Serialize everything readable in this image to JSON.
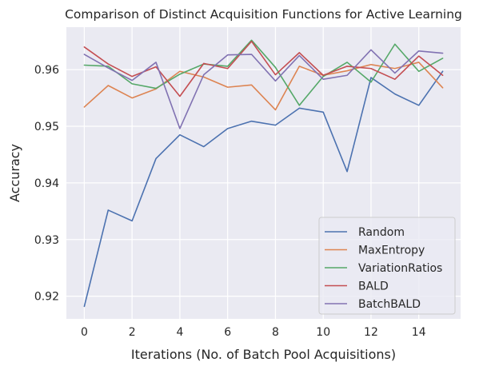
{
  "chart_data": {
    "type": "line",
    "title": "Comparison of Distinct Acquisition Functions for Active Learning",
    "xlabel": "Iterations (No. of Batch Pool Acquisitions)",
    "ylabel": "Accuracy",
    "xlim": [
      -0.75,
      15.75
    ],
    "ylim": [
      0.916,
      0.9675
    ],
    "xticks": [
      0,
      2,
      4,
      6,
      8,
      10,
      12,
      14
    ],
    "xtick_labels": [
      "0",
      "2",
      "4",
      "6",
      "8",
      "10",
      "12",
      "14"
    ],
    "yticks": [
      0.92,
      0.93,
      0.94,
      0.95,
      0.96
    ],
    "ytick_labels": [
      "0.92",
      "0.93",
      "0.94",
      "0.95",
      "0.96"
    ],
    "grid": true,
    "legend_position": "lower-right",
    "x": [
      0,
      1,
      2,
      3,
      4,
      5,
      6,
      7,
      8,
      9,
      10,
      11,
      12,
      13,
      14,
      15
    ],
    "series": [
      {
        "name": "Random",
        "color": "#4c72b0",
        "values": [
          0.9182,
          0.9352,
          0.9333,
          0.9443,
          0.9485,
          0.9464,
          0.9496,
          0.9509,
          0.9502,
          0.9532,
          0.9525,
          0.942,
          0.9586,
          0.9557,
          0.9537,
          0.9597
        ]
      },
      {
        "name": "MaxEntropy",
        "color": "#dd8452",
        "values": [
          0.9534,
          0.9572,
          0.955,
          0.9566,
          0.9597,
          0.9587,
          0.9569,
          0.9573,
          0.9529,
          0.9606,
          0.959,
          0.9598,
          0.9609,
          0.9602,
          0.9613,
          0.9568
        ]
      },
      {
        "name": "VariationRatios",
        "color": "#55a868",
        "values": [
          0.9608,
          0.9606,
          0.9575,
          0.9567,
          0.9592,
          0.961,
          0.9606,
          0.9652,
          0.9604,
          0.9537,
          0.9588,
          0.9613,
          0.9578,
          0.9645,
          0.9597,
          0.962
        ]
      },
      {
        "name": "BALD",
        "color": "#c44e52",
        "values": [
          0.964,
          0.961,
          0.9588,
          0.9605,
          0.9553,
          0.9611,
          0.9602,
          0.965,
          0.9591,
          0.963,
          0.959,
          0.9606,
          0.9602,
          0.9583,
          0.9624,
          0.959
        ]
      },
      {
        "name": "BatchBALD",
        "color": "#8172b2",
        "values": [
          0.9627,
          0.9603,
          0.9581,
          0.9613,
          0.9496,
          0.9591,
          0.9626,
          0.9627,
          0.958,
          0.9625,
          0.9583,
          0.959,
          0.9635,
          0.9594,
          0.9633,
          0.9629
        ]
      }
    ]
  }
}
